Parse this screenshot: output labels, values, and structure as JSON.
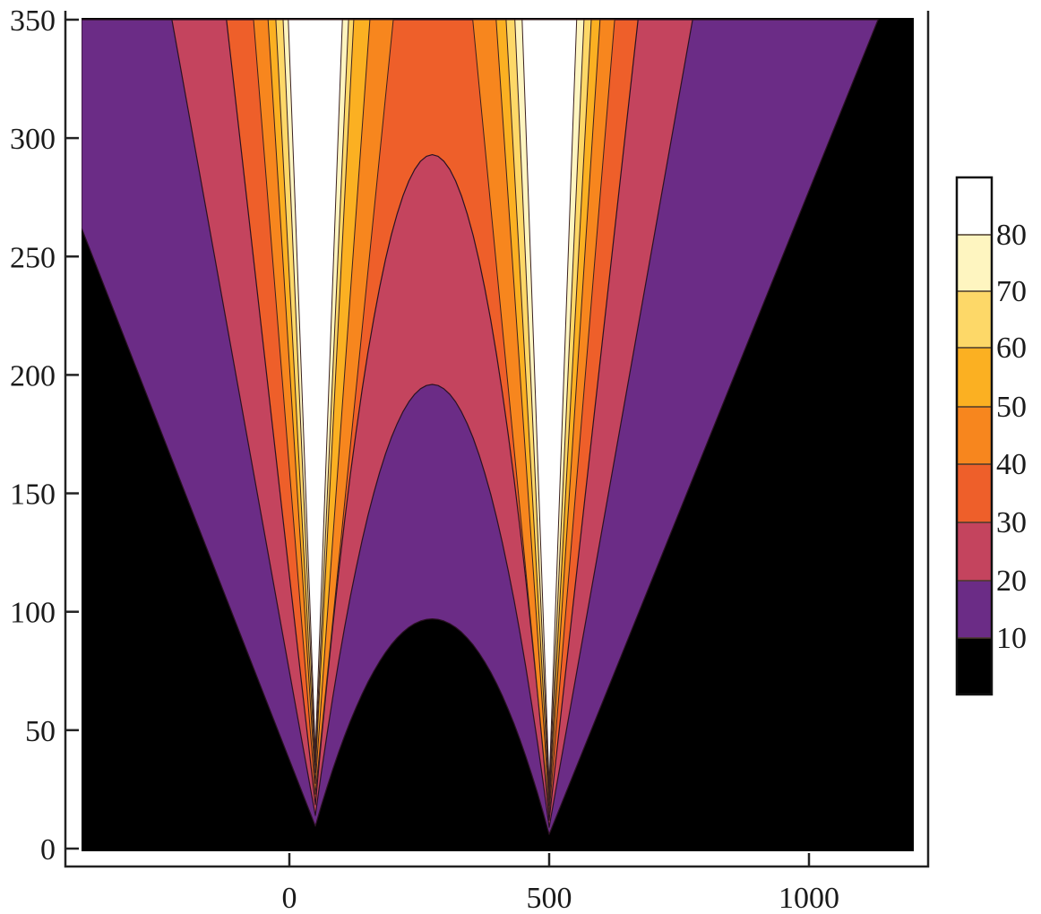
{
  "chart_data": {
    "type": "contour",
    "title": "",
    "xlabel": "",
    "ylabel": "",
    "xlim": [
      -400,
      1200
    ],
    "ylim": [
      0,
      350
    ],
    "x_ticks": [
      0,
      500,
      1000
    ],
    "y_ticks": [
      0,
      50,
      100,
      150,
      200,
      250,
      300,
      350
    ],
    "grid": false,
    "sources_x": [
      50,
      500
    ],
    "levels": [
      {
        "level": 10,
        "color": "#6b2c86",
        "top_intervals": [
          [
            -400,
            1133
          ]
        ],
        "left_edge_y": 262,
        "arch_peak": 97
      },
      {
        "level": 20,
        "color": "#c4445e",
        "top_intervals": [
          [
            -226,
            776
          ]
        ],
        "arch_peak": 196
      },
      {
        "level": 30,
        "color": "#ee5f2a",
        "top_intervals": [
          [
            -121,
            671
          ]
        ],
        "arch_peak": 293
      },
      {
        "level": 40,
        "color": "#f7861e",
        "top_intervals": [
          [
            -69,
            200
          ],
          [
            353,
            626
          ]
        ]
      },
      {
        "level": 50,
        "color": "#fbb022",
        "top_intervals": [
          [
            -41,
            155
          ],
          [
            398,
            598
          ]
        ]
      },
      {
        "level": 60,
        "color": "#fdd868",
        "top_intervals": [
          [
            -26,
            124
          ],
          [
            417,
            581
          ]
        ]
      },
      {
        "level": 70,
        "color": "#fef5c0",
        "top_intervals": [
          [
            -12,
            114
          ],
          [
            434,
            567
          ]
        ]
      },
      {
        "level": 80,
        "color": "#ffffff",
        "top_intervals": [
          [
            -2,
            102
          ],
          [
            448,
            553
          ]
        ]
      }
    ],
    "background_color": "#000000",
    "colorbar": {
      "labels": [
        "10",
        "20",
        "30",
        "40",
        "50",
        "60",
        "70",
        "80"
      ],
      "colors": [
        "#000000",
        "#6b2c86",
        "#c4445e",
        "#ee5f2a",
        "#f7861e",
        "#fbb022",
        "#fdd868",
        "#fef5c0",
        "#ffffff"
      ]
    }
  }
}
